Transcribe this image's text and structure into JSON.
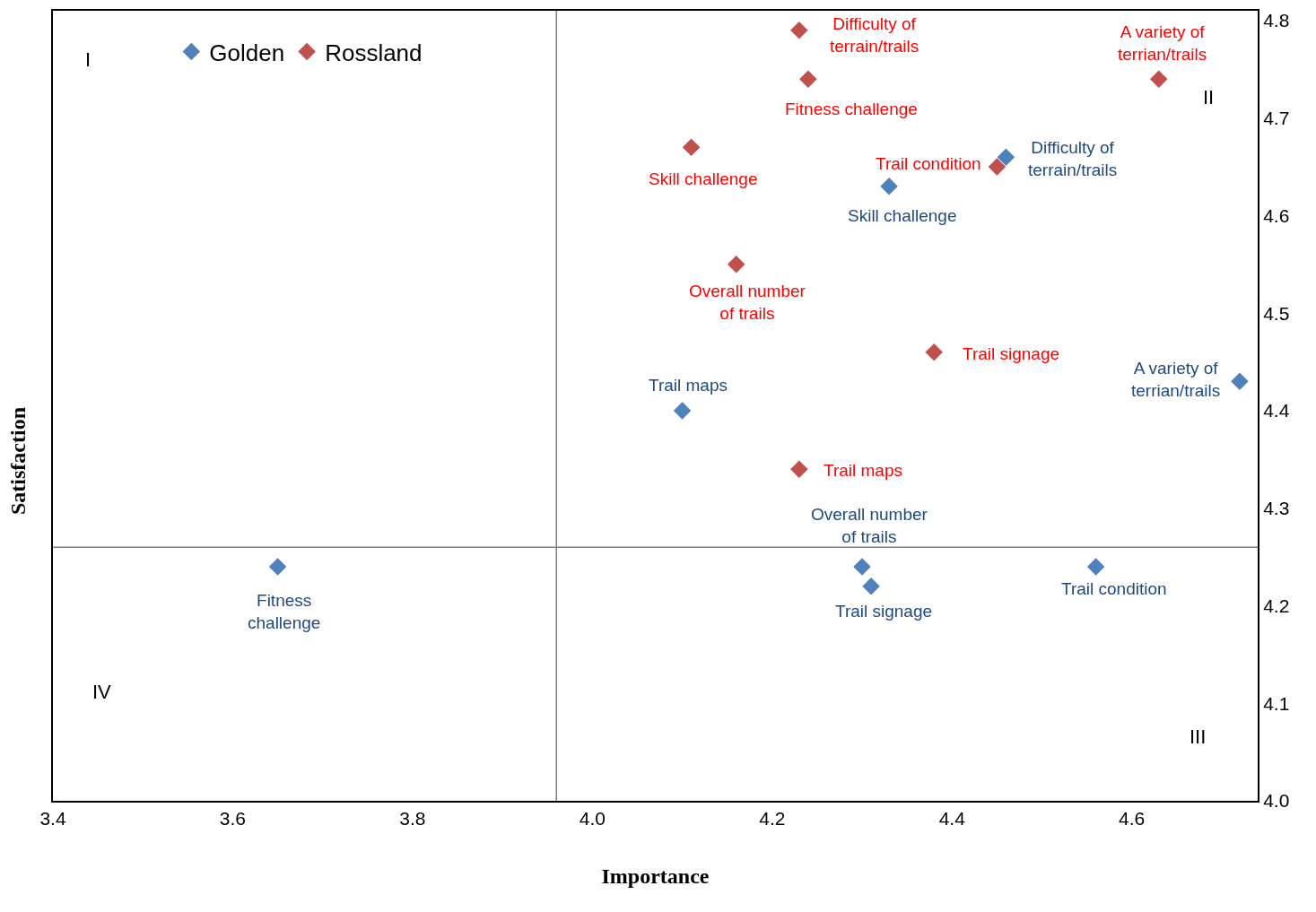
{
  "chart_data": {
    "type": "scatter",
    "xlabel": "Importance",
    "ylabel": "Satisfaction",
    "xlim": [
      3.4,
      4.74
    ],
    "xticks": [
      3.4,
      3.6,
      3.8,
      {
        "value": 4.0,
        "label": "4.0"
      },
      4.2,
      4.4,
      4.6
    ],
    "ylim": [
      4.0,
      4.81
    ],
    "yticks": [
      {
        "value": 4.0,
        "label": "4.0"
      },
      4.1,
      4.2,
      4.3,
      4.4,
      4.5,
      4.6,
      4.7,
      4.8
    ],
    "marker": "diamond",
    "legend": "top left",
    "series": [
      {
        "name": "Golden",
        "color": "#4f81bd",
        "x": [
          3.65,
          4.1,
          4.33,
          4.46,
          4.72,
          4.3,
          4.31,
          4.56
        ],
        "values": [
          4.24,
          4.4,
          4.63,
          4.66,
          4.43,
          4.24,
          4.22,
          4.24
        ]
      },
      {
        "name": "Rossland",
        "color": "#c0504d",
        "x": [
          4.23,
          4.24,
          4.63,
          4.11,
          4.45,
          4.16,
          4.38,
          4.23
        ],
        "values": [
          4.79,
          4.74,
          4.74,
          4.67,
          4.65,
          4.55,
          4.46,
          4.34
        ]
      }
    ],
    "ref_lines": [
      {
        "axis": "x",
        "value": 3.96,
        "color": "#808080"
      },
      {
        "axis": "y",
        "value": 4.26,
        "color": "#808080"
      }
    ],
    "annotations": [
      {
        "text": "Fitness\nchallenge",
        "x": 3.65,
        "y": 4.24
      },
      {
        "text": "Trail maps",
        "x": 4.1,
        "y": 4.4
      },
      {
        "text": "Skill challenge",
        "x": 4.33,
        "y": 4.63
      },
      {
        "text": "Difficulty of\nterrain/trails",
        "x": 4.46,
        "y": 4.66
      },
      {
        "text": "A variety of\nterrian/trails",
        "x": 4.72,
        "y": 4.43
      },
      {
        "text": "Overall number\nof trails",
        "x": 4.3,
        "y": 4.24
      },
      {
        "text": "Trail signage",
        "x": 4.31,
        "y": 4.22
      },
      {
        "text": "Trail condition",
        "x": 4.56,
        "y": 4.24
      },
      {
        "text": "Difficulty of\nterrain/trails",
        "x": 4.23,
        "y": 4.79
      },
      {
        "text": "Fitness challenge",
        "x": 4.24,
        "y": 4.74
      },
      {
        "text": "A variety of\nterrian/trails",
        "x": 4.63,
        "y": 4.74
      },
      {
        "text": "Skill challenge",
        "x": 4.11,
        "y": 4.67
      },
      {
        "text": "Trail condition",
        "x": 4.45,
        "y": 4.65
      },
      {
        "text": "Overall number\nof trails",
        "x": 4.16,
        "y": 4.55
      },
      {
        "text": "Trail signage",
        "x": 4.38,
        "y": 4.46
      },
      {
        "text": "Trail maps",
        "x": 4.23,
        "y": 4.34
      },
      "I",
      "II",
      "III",
      "IV"
    ]
  }
}
